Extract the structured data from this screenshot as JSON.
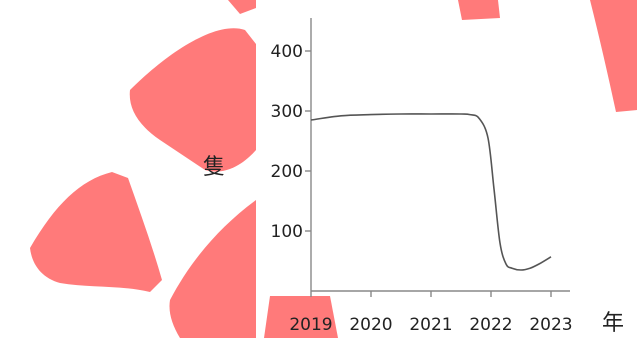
{
  "chart_data": {
    "type": "line",
    "title": "",
    "xlabel": "年",
    "ylabel": "隻",
    "x_ticks": [
      "2019",
      "2020",
      "2021",
      "2022",
      "2023"
    ],
    "y_ticks": [
      100,
      200,
      300,
      400
    ],
    "xlim": [
      2019,
      2023
    ],
    "ylim": [
      0,
      450
    ],
    "grid": false,
    "series": [
      {
        "color": "#555555",
        "x": [
          2019.0,
          2019.5,
          2020.0,
          2020.5,
          2021.0,
          2021.5,
          2021.65,
          2021.8,
          2021.95,
          2022.05,
          2022.15,
          2022.25,
          2022.35,
          2022.5,
          2022.65,
          2022.8,
          2023.0
        ],
        "y": [
          285,
          292,
          294,
          295,
          295,
          295,
          294,
          288,
          255,
          170,
          80,
          45,
          38,
          35,
          38,
          45,
          57
        ]
      }
    ]
  },
  "decoration": {
    "accent_color": "#ff7a7a"
  }
}
